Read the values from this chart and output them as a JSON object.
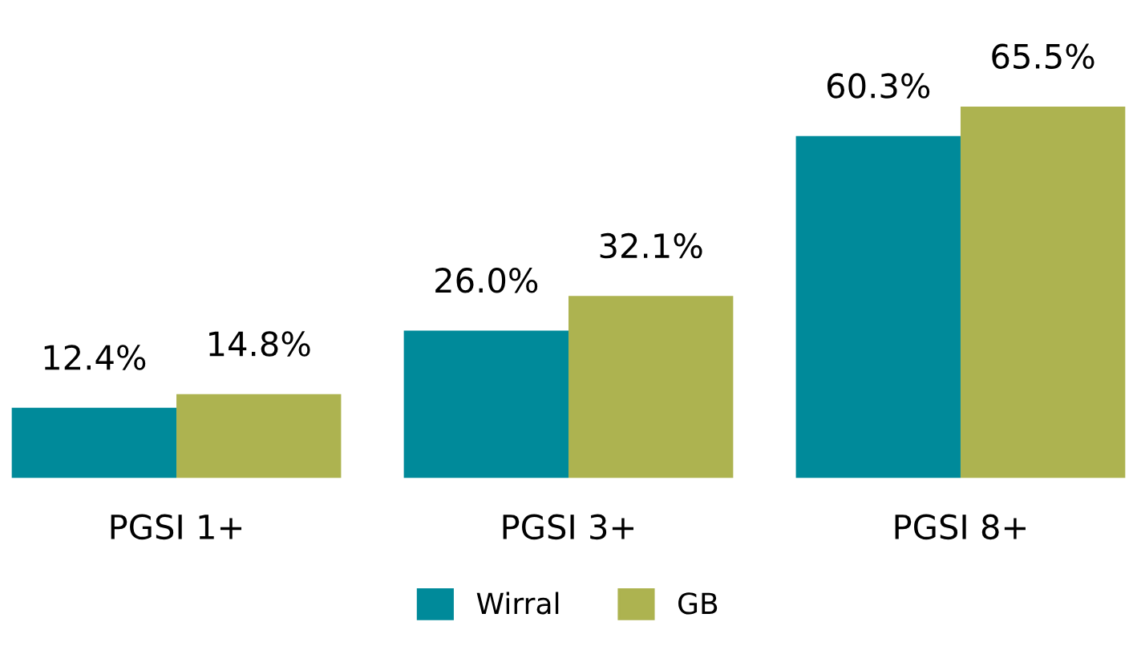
{
  "chart_data": {
    "type": "bar",
    "categories": [
      "PGSI 1+",
      "PGSI 3+",
      "PGSI 8+"
    ],
    "series": [
      {
        "name": "Wirral",
        "color": "#008a9a",
        "values": [
          12.4,
          26.0,
          60.3
        ],
        "value_labels": [
          "12.4%",
          "26.0%",
          "60.3%"
        ]
      },
      {
        "name": "GB",
        "color": "#adb350",
        "values": [
          14.8,
          32.1,
          65.5
        ],
        "value_labels": [
          "14.8%",
          "32.1%",
          "65.5%"
        ]
      }
    ],
    "grid": false,
    "legend": "bottom"
  }
}
